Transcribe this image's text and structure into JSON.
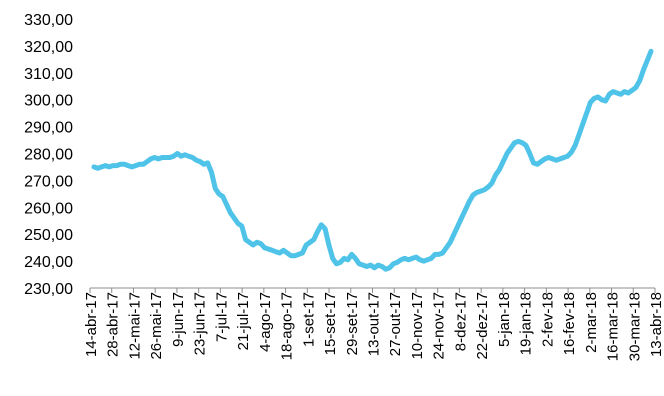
{
  "chart_data": {
    "type": "line",
    "title": "",
    "xlabel": "",
    "ylabel": "",
    "ylim": [
      230,
      330
    ],
    "y_ticks": [
      "330,00",
      "320,00",
      "310,00",
      "300,00",
      "290,00",
      "280,00",
      "270,00",
      "260,00",
      "250,00",
      "240,00",
      "230,00"
    ],
    "x_ticks": [
      "14-abr-17",
      "28-abr-17",
      "12-mai-17",
      "26-mai-17",
      "9-jun-17",
      "23-jun-17",
      "7-jul-17",
      "21-jul-17",
      "4-ago-17",
      "18-ago-17",
      "1-set-17",
      "15-set-17",
      "29-set-17",
      "13-out-17",
      "27-out-17",
      "10-nov-17",
      "24-nov-17",
      "8-dez-17",
      "22-dez-17",
      "5-jan-18",
      "19-jan-18",
      "2-fev-18",
      "16-fev-18",
      "2-mar-18",
      "16-mar-18",
      "30-mar-18",
      "13-abr-18"
    ],
    "grid": false,
    "legend": "none",
    "line_color": "#4fc3e8",
    "series": [
      {
        "values": [
          275.0,
          274.5,
          275.0,
          275.5,
          275.0,
          275.5,
          275.5,
          276.0,
          276.0,
          275.5,
          275.0,
          275.5,
          276.0,
          276.0,
          277.0,
          278.0,
          278.5,
          278.0,
          278.5,
          278.5,
          278.5,
          279.0,
          280.0,
          279.0,
          279.5,
          279.0,
          278.5,
          277.5,
          277.0,
          276.0,
          276.5,
          273.0,
          267.0,
          265.0,
          264.0,
          261.0,
          258.0,
          256.0,
          254.0,
          253.0,
          248.0,
          247.0,
          246.0,
          247.0,
          246.5,
          245.0,
          244.5,
          244.0,
          243.5,
          243.0,
          244.0,
          243.0,
          242.0,
          242.0,
          242.5,
          243.0,
          246.0,
          247.0,
          248.0,
          251.0,
          253.5,
          252.0,
          246.0,
          241.0,
          239.0,
          239.5,
          241.0,
          240.5,
          242.5,
          241.0,
          239.0,
          238.5,
          238.0,
          238.5,
          237.5,
          238.5,
          238.0,
          237.0,
          237.5,
          239.0,
          239.5,
          240.5,
          241.0,
          240.5,
          241.0,
          241.5,
          240.5,
          240.0,
          240.5,
          241.0,
          242.5,
          242.5,
          243.0,
          245.0,
          247.0,
          250.0,
          253.0,
          256.0,
          259.0,
          262.0,
          264.5,
          265.5,
          266.0,
          266.5,
          267.5,
          269.0,
          272.0,
          274.0,
          277.0,
          280.0,
          282.0,
          284.0,
          284.5,
          284.0,
          283.0,
          280.0,
          276.5,
          276.0,
          277.0,
          278.0,
          278.5,
          278.0,
          277.5,
          278.0,
          278.5,
          279.0,
          280.5,
          283.0,
          287.0,
          291.0,
          295.0,
          299.0,
          300.5,
          301.0,
          300.0,
          299.5,
          302.0,
          303.0,
          302.5,
          302.0,
          303.0,
          302.5,
          303.5,
          304.5,
          307.0,
          311.0,
          314.5,
          318.0
        ]
      }
    ]
  }
}
